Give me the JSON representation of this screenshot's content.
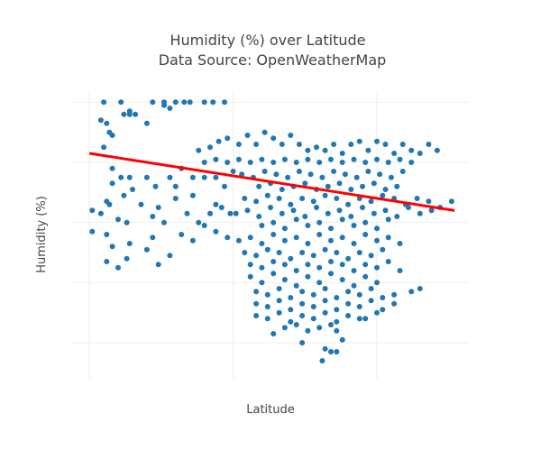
{
  "chart_data": {
    "type": "scatter",
    "title": "Humidity (%) over Latitude",
    "subtitle": "Data Source: OpenWeatherMap",
    "xlabel": "Latitude",
    "ylabel": "Humidity (%)",
    "xlim": [
      -56,
      82
    ],
    "ylim": [
      8,
      104
    ],
    "grid": true,
    "marker_color": "#1f77b4",
    "trendline_color": "#ff0000",
    "trendline": {
      "x": [
        -50,
        77
      ],
      "y": [
        83,
        64
      ]
    },
    "points": [
      [
        -49,
        57
      ],
      [
        -49,
        64
      ],
      [
        -46,
        94
      ],
      [
        -44,
        93
      ],
      [
        -43,
        90
      ],
      [
        -42,
        89
      ],
      [
        -39,
        100
      ],
      [
        -45,
        100
      ],
      [
        -38,
        96
      ],
      [
        -36,
        96
      ],
      [
        -34,
        96
      ],
      [
        -30,
        93
      ],
      [
        -28,
        100
      ],
      [
        -24,
        100
      ],
      [
        -20,
        100
      ],
      [
        -15,
        100
      ],
      [
        -10,
        100
      ],
      [
        -7,
        100
      ],
      [
        -3,
        100
      ],
      [
        -36,
        97
      ],
      [
        -24,
        99
      ],
      [
        -22,
        98
      ],
      [
        -17,
        100
      ],
      [
        -45,
        85
      ],
      [
        -42,
        78
      ],
      [
        -39,
        75
      ],
      [
        -36,
        75
      ],
      [
        -30,
        75
      ],
      [
        -22,
        75
      ],
      [
        -18,
        78
      ],
      [
        -14,
        75
      ],
      [
        -10,
        75
      ],
      [
        -6,
        75
      ],
      [
        -3,
        72
      ],
      [
        -42,
        73
      ],
      [
        -35,
        71
      ],
      [
        -27,
        72
      ],
      [
        -20,
        72
      ],
      [
        -46,
        63
      ],
      [
        -43,
        66
      ],
      [
        -40,
        61
      ],
      [
        -37,
        60
      ],
      [
        -32,
        66
      ],
      [
        -28,
        62
      ],
      [
        -24,
        60
      ],
      [
        -20,
        68
      ],
      [
        -16,
        63
      ],
      [
        -12,
        60
      ],
      [
        -8,
        63
      ],
      [
        -4,
        65
      ],
      [
        -1,
        63
      ],
      [
        -44,
        67
      ],
      [
        -38,
        69
      ],
      [
        -26,
        65
      ],
      [
        -14,
        69
      ],
      [
        -6,
        66
      ],
      [
        -44,
        56
      ],
      [
        -42,
        52
      ],
      [
        -36,
        53
      ],
      [
        -30,
        51
      ],
      [
        -28,
        55
      ],
      [
        -22,
        49
      ],
      [
        -18,
        56
      ],
      [
        -14,
        54
      ],
      [
        -10,
        59
      ],
      [
        -6,
        57
      ],
      [
        -2,
        55
      ],
      [
        -37,
        48
      ],
      [
        -26,
        46
      ],
      [
        -40,
        45
      ],
      [
        -44,
        47
      ],
      [
        -12,
        84
      ],
      [
        -8,
        85
      ],
      [
        -5,
        87
      ],
      [
        -2,
        88
      ],
      [
        2,
        86
      ],
      [
        5,
        89
      ],
      [
        8,
        86
      ],
      [
        11,
        90
      ],
      [
        14,
        88
      ],
      [
        17,
        86
      ],
      [
        20,
        89
      ],
      [
        23,
        86
      ],
      [
        26,
        84
      ],
      [
        29,
        85
      ],
      [
        32,
        84
      ],
      [
        35,
        86
      ],
      [
        38,
        83
      ],
      [
        41,
        86
      ],
      [
        44,
        87
      ],
      [
        47,
        84
      ],
      [
        50,
        87
      ],
      [
        53,
        86
      ],
      [
        56,
        83
      ],
      [
        59,
        86
      ],
      [
        62,
        84
      ],
      [
        65,
        83
      ],
      [
        68,
        86
      ],
      [
        71,
        84
      ],
      [
        -10,
        80
      ],
      [
        -6,
        81
      ],
      [
        -2,
        80
      ],
      [
        2,
        81
      ],
      [
        6,
        80
      ],
      [
        10,
        81
      ],
      [
        14,
        80
      ],
      [
        18,
        81
      ],
      [
        22,
        80
      ],
      [
        26,
        81
      ],
      [
        30,
        80
      ],
      [
        34,
        81
      ],
      [
        38,
        80
      ],
      [
        42,
        81
      ],
      [
        46,
        80
      ],
      [
        50,
        81
      ],
      [
        54,
        80
      ],
      [
        58,
        81
      ],
      [
        62,
        80
      ],
      [
        0,
        77
      ],
      [
        3,
        76
      ],
      [
        7,
        75
      ],
      [
        11,
        77
      ],
      [
        15,
        76
      ],
      [
        19,
        75
      ],
      [
        23,
        77
      ],
      [
        27,
        76
      ],
      [
        31,
        75
      ],
      [
        35,
        77
      ],
      [
        39,
        76
      ],
      [
        43,
        75
      ],
      [
        47,
        77
      ],
      [
        51,
        76
      ],
      [
        55,
        75
      ],
      [
        59,
        77
      ],
      [
        9,
        72
      ],
      [
        13,
        73
      ],
      [
        17,
        71
      ],
      [
        21,
        72
      ],
      [
        25,
        73
      ],
      [
        29,
        71
      ],
      [
        33,
        72
      ],
      [
        37,
        73
      ],
      [
        41,
        71
      ],
      [
        45,
        72
      ],
      [
        49,
        73
      ],
      [
        53,
        71
      ],
      [
        57,
        72
      ],
      [
        4,
        68
      ],
      [
        8,
        67
      ],
      [
        12,
        69
      ],
      [
        16,
        68
      ],
      [
        20,
        66
      ],
      [
        24,
        68
      ],
      [
        28,
        67
      ],
      [
        32,
        69
      ],
      [
        36,
        68
      ],
      [
        40,
        66
      ],
      [
        44,
        68
      ],
      [
        48,
        67
      ],
      [
        52,
        69
      ],
      [
        56,
        68
      ],
      [
        60,
        66
      ],
      [
        64,
        68
      ],
      [
        68,
        67
      ],
      [
        1,
        63
      ],
      [
        5,
        64
      ],
      [
        9,
        62
      ],
      [
        13,
        65
      ],
      [
        17,
        63
      ],
      [
        21,
        64
      ],
      [
        25,
        62
      ],
      [
        29,
        65
      ],
      [
        33,
        63
      ],
      [
        37,
        64
      ],
      [
        41,
        62
      ],
      [
        45,
        65
      ],
      [
        49,
        63
      ],
      [
        53,
        64
      ],
      [
        57,
        62
      ],
      [
        61,
        65
      ],
      [
        65,
        63
      ],
      [
        69,
        64
      ],
      [
        76,
        67
      ],
      [
        72,
        65
      ],
      [
        10,
        59
      ],
      [
        14,
        60
      ],
      [
        18,
        58
      ],
      [
        22,
        61
      ],
      [
        26,
        59
      ],
      [
        30,
        60
      ],
      [
        34,
        58
      ],
      [
        38,
        61
      ],
      [
        42,
        59
      ],
      [
        46,
        60
      ],
      [
        50,
        58
      ],
      [
        54,
        61
      ],
      [
        2,
        54
      ],
      [
        6,
        55
      ],
      [
        10,
        53
      ],
      [
        14,
        56
      ],
      [
        18,
        54
      ],
      [
        22,
        55
      ],
      [
        26,
        53
      ],
      [
        30,
        56
      ],
      [
        34,
        54
      ],
      [
        38,
        55
      ],
      [
        42,
        53
      ],
      [
        46,
        56
      ],
      [
        50,
        54
      ],
      [
        54,
        55
      ],
      [
        58,
        53
      ],
      [
        4,
        50
      ],
      [
        8,
        49
      ],
      [
        12,
        51
      ],
      [
        16,
        50
      ],
      [
        20,
        48
      ],
      [
        24,
        50
      ],
      [
        28,
        49
      ],
      [
        32,
        51
      ],
      [
        36,
        50
      ],
      [
        40,
        48
      ],
      [
        44,
        50
      ],
      [
        48,
        49
      ],
      [
        52,
        51
      ],
      [
        6,
        46
      ],
      [
        10,
        45
      ],
      [
        14,
        47
      ],
      [
        18,
        46
      ],
      [
        22,
        44
      ],
      [
        26,
        46
      ],
      [
        30,
        45
      ],
      [
        34,
        47
      ],
      [
        38,
        46
      ],
      [
        42,
        44
      ],
      [
        46,
        46
      ],
      [
        50,
        45
      ],
      [
        54,
        47
      ],
      [
        58,
        44
      ],
      [
        6,
        42
      ],
      [
        10,
        40
      ],
      [
        14,
        43
      ],
      [
        18,
        41
      ],
      [
        22,
        39
      ],
      [
        26,
        42
      ],
      [
        30,
        40
      ],
      [
        34,
        43
      ],
      [
        38,
        41
      ],
      [
        42,
        39
      ],
      [
        46,
        42
      ],
      [
        50,
        40
      ],
      [
        8,
        37
      ],
      [
        12,
        36
      ],
      [
        16,
        38
      ],
      [
        20,
        35
      ],
      [
        24,
        37
      ],
      [
        28,
        36
      ],
      [
        32,
        38
      ],
      [
        36,
        35
      ],
      [
        40,
        37
      ],
      [
        44,
        36
      ],
      [
        48,
        38
      ],
      [
        52,
        35
      ],
      [
        56,
        36
      ],
      [
        62,
        37
      ],
      [
        65,
        38
      ],
      [
        8,
        33
      ],
      [
        12,
        32
      ],
      [
        16,
        34
      ],
      [
        20,
        31
      ],
      [
        24,
        33
      ],
      [
        28,
        32
      ],
      [
        32,
        34
      ],
      [
        36,
        31
      ],
      [
        40,
        33
      ],
      [
        44,
        32
      ],
      [
        48,
        34
      ],
      [
        52,
        31
      ],
      [
        56,
        33
      ],
      [
        8,
        29
      ],
      [
        12,
        28
      ],
      [
        16,
        30
      ],
      [
        20,
        27
      ],
      [
        24,
        29
      ],
      [
        28,
        28
      ],
      [
        32,
        30
      ],
      [
        36,
        27
      ],
      [
        40,
        29
      ],
      [
        44,
        28
      ],
      [
        18,
        25
      ],
      [
        22,
        26
      ],
      [
        26,
        24
      ],
      [
        30,
        25
      ],
      [
        34,
        26
      ],
      [
        36,
        24
      ],
      [
        14,
        23
      ],
      [
        38,
        21
      ],
      [
        46,
        28
      ],
      [
        50,
        30
      ],
      [
        24,
        20
      ],
      [
        32,
        18
      ],
      [
        34,
        17
      ],
      [
        36,
        17
      ],
      [
        31,
        14
      ]
    ]
  }
}
